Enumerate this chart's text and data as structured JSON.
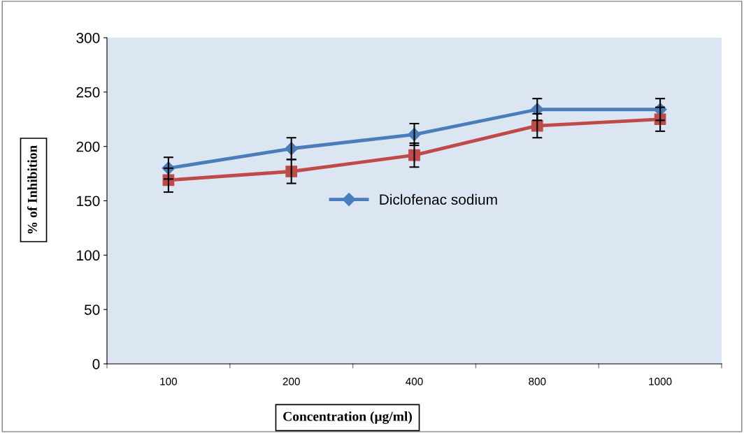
{
  "chart_data": {
    "type": "line",
    "categories": [
      "100",
      "200",
      "400",
      "800",
      "1000"
    ],
    "series": [
      {
        "name": "Diclofenac sodium",
        "color": "#4a7ebb",
        "marker": "diamond",
        "values": [
          180,
          198,
          211,
          234,
          234
        ],
        "errors": [
          10,
          10,
          10,
          10,
          10
        ]
      },
      {
        "color": "#be4b48",
        "marker": "square",
        "values": [
          169,
          177,
          192,
          219,
          225
        ],
        "errors": [
          11,
          11,
          11,
          11,
          11
        ]
      }
    ],
    "xlabel": "Concentration (µg/ml)",
    "ylabel": "% of Inhibition",
    "ylim": [
      0,
      300
    ],
    "yticks": [
      0,
      50,
      100,
      150,
      200,
      250,
      300
    ],
    "grid": false,
    "legend": "center",
    "line_style": "solid"
  }
}
